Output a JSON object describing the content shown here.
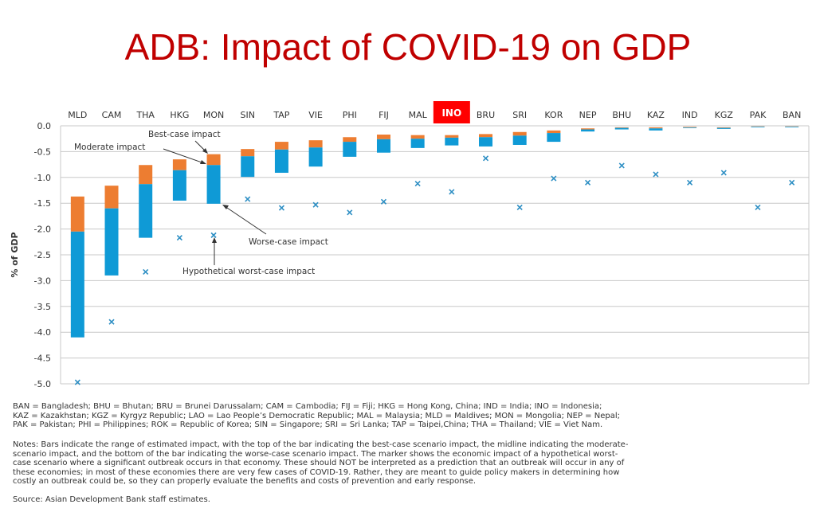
{
  "title": "ADB: Impact of COVID-19 on GDP",
  "colors": {
    "title": "#c00000",
    "best_to_moderate": "#ed7d31",
    "moderate_to_worse": "#0f9ad6",
    "marker": "#2e8fc4",
    "highlight": "#ff0000",
    "grid": "#c8c8c8"
  },
  "chart_data": {
    "type": "bar",
    "subtype": "floating-range-with-markers",
    "title": "ADB: Impact of COVID-19 on GDP",
    "xlabel": "",
    "ylabel": "% of GDP",
    "ylim": [
      -5.0,
      0.0
    ],
    "yticks": [
      0.0,
      -0.5,
      -1.0,
      -1.5,
      -2.0,
      -2.5,
      -3.0,
      -3.5,
      -4.0,
      -4.5,
      -5.0
    ],
    "ytick_labels": [
      "0.0",
      "-0.5",
      "-1.0",
      "-1.5",
      "-2.0",
      "-2.5",
      "-3.0",
      "-3.5",
      "-4.0",
      "-4.5",
      "-5.0"
    ],
    "grid": true,
    "category_axis_position": "top",
    "highlighted_category": "INO",
    "categories": [
      "MLD",
      "CAM",
      "THA",
      "HKG",
      "MON",
      "SIN",
      "TAP",
      "VIE",
      "PHI",
      "FIJ",
      "MAL",
      "INO",
      "BRU",
      "SRI",
      "KOR",
      "NEP",
      "BHU",
      "KAZ",
      "IND",
      "KGZ",
      "PAK",
      "BAN"
    ],
    "series": [
      {
        "name": "Best-case impact",
        "values": [
          -1.37,
          -1.16,
          -0.76,
          -0.65,
          -0.55,
          -0.45,
          -0.31,
          -0.28,
          -0.22,
          -0.17,
          -0.18,
          -0.18,
          -0.16,
          -0.12,
          -0.09,
          -0.05,
          -0.03,
          -0.03,
          -0.02,
          -0.03,
          -0.01,
          -0.01
        ]
      },
      {
        "name": "Moderate impact",
        "values": [
          -2.05,
          -1.6,
          -1.13,
          -0.86,
          -0.76,
          -0.59,
          -0.46,
          -0.42,
          -0.31,
          -0.26,
          -0.25,
          -0.23,
          -0.22,
          -0.19,
          -0.14,
          -0.07,
          -0.04,
          -0.05,
          -0.03,
          -0.04,
          -0.015,
          -0.015
        ]
      },
      {
        "name": "Worse-case impact",
        "values": [
          -4.1,
          -2.9,
          -2.17,
          -1.45,
          -1.51,
          -0.99,
          -0.91,
          -0.79,
          -0.6,
          -0.52,
          -0.43,
          -0.38,
          -0.4,
          -0.37,
          -0.31,
          -0.11,
          -0.07,
          -0.09,
          -0.04,
          -0.06,
          -0.02,
          -0.02
        ]
      },
      {
        "name": "Hypothetical worst-case impact",
        "marker": "x",
        "values": [
          -4.97,
          -3.8,
          -2.83,
          -2.17,
          -2.12,
          -1.42,
          -1.59,
          -1.53,
          -1.68,
          -1.47,
          -1.12,
          -1.28,
          -0.63,
          -1.58,
          -1.02,
          -1.1,
          -0.77,
          -0.94,
          -1.1,
          -0.91,
          -1.58,
          -1.1
        ]
      }
    ],
    "annotations": [
      {
        "text": "Best-case impact",
        "points_to": "MON top"
      },
      {
        "text": "Moderate impact",
        "points_to": "MON midline"
      },
      {
        "text": "Worse-case impact",
        "points_to": "MON bottom"
      },
      {
        "text": "Hypothetical worst-case impact",
        "points_to": "MON marker"
      }
    ]
  },
  "footnotes": {
    "abbreviations": [
      "BAN = Bangladesh; BHU = Bhutan; BRU = Brunei Darussalam; CAM = Cambodia; FIJ = Fiji; HKG = Hong Kong, China; IND = India; INO = Indonesia;",
      "KAZ = Kazakhstan; KGZ = Kyrgyz Republic; LAO = Lao People’s Democratic Republic; MAL = Malaysia; MLD = Maldives; MON = Mongolia; NEP = Nepal;",
      "PAK = Pakistan; PHI = Philippines; ROK = Republic of Korea; SIN = Singapore; SRI = Sri Lanka; TAP = Taipei,China; THA = Thailand; VIE = Viet Nam."
    ],
    "notes": [
      "Notes: Bars indicate the range of estimated impact, with the top of the bar indicating the best-case scenario impact, the midline indicating the moderate-",
      "scenario impact, and the bottom of the bar indicating the worse-case scenario impact. The marker shows the economic impact of a hypothetical worst-",
      "case scenario where a significant outbreak occurs in that economy. These should NOT be interpreted as a prediction that an outbreak will occur in any of",
      "these economies; in most of these economies there are very few cases of COVID-19. Rather, they are meant to guide policy makers in determining how",
      "costly an outbreak could be, so they can properly evaluate the benefits and costs of prevention and early response."
    ],
    "source": "Source: Asian Development Bank staff estimates."
  }
}
